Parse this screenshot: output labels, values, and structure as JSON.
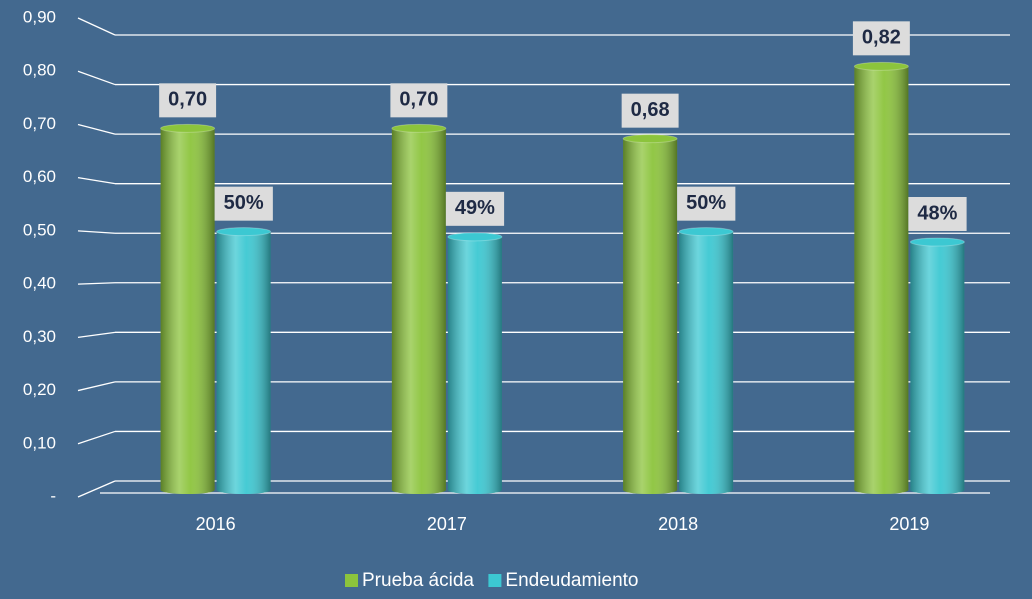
{
  "chart_data": {
    "type": "bar",
    "categories": [
      "2016",
      "2017",
      "2018",
      "2019"
    ],
    "series": [
      {
        "name": "Prueba ácida",
        "color": "#8cc43c",
        "values": [
          0.7,
          0.7,
          0.68,
          0.82
        ],
        "value_labels": [
          "0,70",
          "0,70",
          "0,68",
          "0,82"
        ]
      },
      {
        "name": "Endeudamiento",
        "color": "#3cc8d2",
        "values": [
          0.5,
          0.49,
          0.5,
          0.48
        ],
        "value_labels": [
          "50%",
          "49%",
          "50%",
          "48%"
        ]
      }
    ],
    "ylim": [
      0,
      0.9
    ],
    "yticks": [
      {
        "value": 0,
        "label": "-"
      },
      {
        "value": 0.1,
        "label": "0,10"
      },
      {
        "value": 0.2,
        "label": "0,20"
      },
      {
        "value": 0.3,
        "label": "0,30"
      },
      {
        "value": 0.4,
        "label": "0,40"
      },
      {
        "value": 0.5,
        "label": "0,50"
      },
      {
        "value": 0.6,
        "label": "0,60"
      },
      {
        "value": 0.7,
        "label": "0,70"
      },
      {
        "value": 0.8,
        "label": "0,80"
      },
      {
        "value": 0.9,
        "label": "0,90"
      }
    ],
    "grid": true,
    "legend": "bottom"
  }
}
